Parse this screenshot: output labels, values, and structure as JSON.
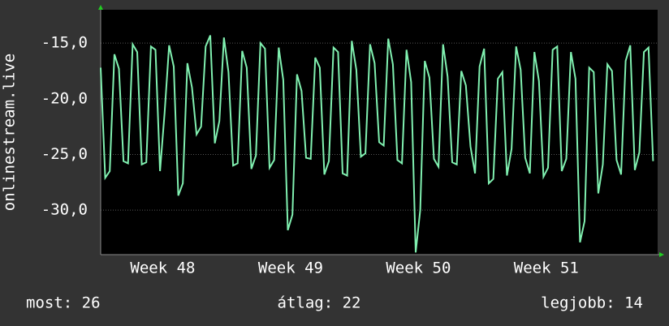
{
  "chart_data": {
    "type": "line",
    "ylabel": "onlinestream.live",
    "x": [
      0,
      0.25,
      0.5,
      0.75,
      1,
      1.25,
      1.5,
      1.75,
      2,
      2.25,
      2.5,
      2.75,
      3,
      3.25,
      3.5,
      3.75,
      4,
      4.25,
      4.5,
      4.75,
      5,
      5.25,
      5.5,
      5.75,
      6,
      6.25,
      6.5,
      6.75,
      7,
      7.25,
      7.5,
      7.75,
      8,
      8.25,
      8.5,
      8.75,
      9,
      9.25,
      9.5,
      9.75,
      10,
      10.25,
      10.5,
      10.75,
      11,
      11.25,
      11.5,
      11.75,
      12,
      12.25,
      12.5,
      12.75,
      13,
      13.25,
      13.5,
      13.75,
      14,
      14.25,
      14.5,
      14.75,
      15,
      15.25,
      15.5,
      15.75,
      16,
      16.25,
      16.5,
      16.75,
      17,
      17.25,
      17.5,
      17.75,
      18,
      18.25,
      18.5,
      18.75,
      19,
      19.25,
      19.5,
      19.75,
      20,
      20.25,
      20.5,
      20.75,
      21,
      21.25,
      21.5,
      21.75,
      22,
      22.25,
      22.5,
      22.75,
      23,
      23.25,
      23.5,
      23.75,
      24,
      24.25,
      24.5,
      24.75,
      25,
      25.25,
      25.5,
      25.75,
      26,
      26.25,
      26.5,
      26.75,
      27,
      27.25,
      27.5,
      27.75,
      28,
      28.25,
      28.5,
      28.75,
      29,
      29.25,
      29.5,
      29.75,
      30,
      30.25
    ],
    "series": [
      {
        "name": null,
        "color": "#80f0b0",
        "values": [
          -17.2,
          -27.1,
          -26.5,
          -16,
          -17.3,
          -25.6,
          -25.8,
          -15.1,
          -15.8,
          -25.9,
          -25.7,
          -15.3,
          -15.6,
          -26.5,
          -21.3,
          -15.2,
          -17.1,
          -28.7,
          -27.6,
          -16.8,
          -19,
          -23.2,
          -22.5,
          -15.3,
          -14.3,
          -24,
          -22,
          -14.5,
          -17.6,
          -26,
          -25.8,
          -15.7,
          -17.2,
          -26.3,
          -25.1,
          -15,
          -15.5,
          -26.2,
          -25.5,
          -15.4,
          -18.3,
          -31.8,
          -30.4,
          -17.8,
          -19.3,
          -25.3,
          -25.4,
          -16.3,
          -17.2,
          -26.8,
          -25.6,
          -15.4,
          -15.8,
          -26.7,
          -26.9,
          -14.8,
          -17.4,
          -25.2,
          -24.9,
          -15.1,
          -16.8,
          -23.9,
          -24.2,
          -14.6,
          -16.9,
          -25.5,
          -25.8,
          -15.6,
          -18.5,
          -33.8,
          -30,
          -16.6,
          -18.1,
          -25.4,
          -26.1,
          -15.1,
          -18,
          -25.7,
          -25.9,
          -17.5,
          -18.8,
          -24.3,
          -26.7,
          -17.1,
          -15.5,
          -27.6,
          -27.2,
          -18.2,
          -17.6,
          -26.9,
          -24.5,
          -15.3,
          -17.4,
          -25.3,
          -26.7,
          -15.8,
          -18.4,
          -27,
          -26.2,
          -15.6,
          -15.3,
          -26.5,
          -25.4,
          -15.8,
          -18.2,
          -32.9,
          -31,
          -17.2,
          -17.6,
          -28.5,
          -25.9,
          -16.9,
          -17.5,
          -25.5,
          -26.8,
          -16.6,
          -15.2,
          -26.4,
          -24.8,
          -15.8,
          -15.4,
          -25.6
        ]
      }
    ],
    "xlim": [
      0,
      30.5
    ],
    "xticks": [
      {
        "value": 3.4,
        "label": "Week 48"
      },
      {
        "value": 10.4,
        "label": "Week 49"
      },
      {
        "value": 17.4,
        "label": "Week 50"
      },
      {
        "value": 24.4,
        "label": "Week 51"
      }
    ],
    "ylim": [
      -34,
      -12
    ],
    "yticks": [
      {
        "value": -15,
        "label": "-15,0"
      },
      {
        "value": -20,
        "label": "-20,0"
      },
      {
        "value": -25,
        "label": "-25,0"
      },
      {
        "value": -30,
        "label": "-30,0"
      }
    ],
    "grid": true,
    "footer": [
      "most: 26",
      "átlag: 22",
      "legjobb: 14"
    ]
  }
}
